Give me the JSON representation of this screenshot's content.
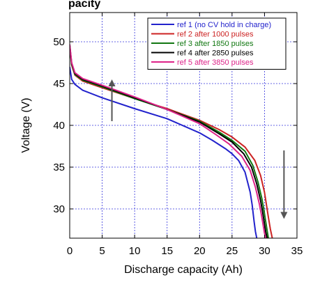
{
  "title_fragment": "pacity",
  "chart_data": {
    "type": "line",
    "title": "",
    "xlabel": "Discharge capacity (Ah)",
    "ylabel": "Voltage (V)",
    "xlim": [
      0,
      35
    ],
    "ylim": [
      26.5,
      53.5
    ],
    "xticks": [
      0,
      5,
      10,
      15,
      20,
      25,
      30,
      35
    ],
    "yticks": [
      30,
      35,
      40,
      45,
      50
    ],
    "grid": true,
    "legend_position": "top-right",
    "series": [
      {
        "name": "ref 1 (no CV hold in charge)",
        "color": "#2222cc",
        "x": [
          0,
          0.3,
          0.8,
          2,
          5,
          10,
          15,
          20,
          22,
          24,
          25,
          26,
          27,
          27.8,
          28.1,
          28.4,
          28.6,
          28.8
        ],
        "y": [
          47.0,
          45.5,
          44.9,
          44.2,
          43.3,
          42.0,
          40.8,
          39.1,
          38.2,
          37.2,
          36.6,
          35.8,
          34.4,
          32.0,
          30.5,
          28.5,
          27.3,
          26.5
        ]
      },
      {
        "name": "ref 2 after 1000 pulses",
        "color": "#cc2222",
        "x": [
          0,
          0.3,
          0.8,
          2,
          5,
          10,
          15,
          20,
          23,
          25,
          27,
          28.5,
          29.4,
          30.0,
          30.3,
          30.6,
          30.9,
          31.2
        ],
        "y": [
          49.5,
          47.2,
          46.0,
          45.3,
          44.5,
          43.2,
          42.0,
          40.6,
          39.5,
          38.6,
          37.4,
          35.8,
          34.0,
          32.0,
          30.5,
          29.0,
          27.6,
          26.5
        ]
      },
      {
        "name": "ref 3 after 1850 pulses",
        "color": "#117711",
        "x": [
          0,
          0.3,
          0.8,
          2,
          5,
          10,
          15,
          20,
          23,
          25,
          27,
          28.2,
          29.0,
          29.6,
          29.9,
          30.2,
          30.4,
          30.6
        ],
        "y": [
          49.5,
          47.3,
          46.1,
          45.4,
          44.6,
          43.2,
          41.9,
          40.5,
          39.2,
          38.2,
          36.9,
          35.2,
          33.2,
          31.2,
          29.9,
          28.4,
          27.4,
          26.5
        ]
      },
      {
        "name": "ref 4 after 2850 pulses",
        "color": "#000000",
        "x": [
          0,
          0.3,
          0.8,
          2,
          5,
          10,
          15,
          20,
          23,
          25,
          26.8,
          28.0,
          28.8,
          29.4,
          29.7,
          30.0,
          30.2,
          30.4
        ],
        "y": [
          49.6,
          47.4,
          46.2,
          45.5,
          44.7,
          43.3,
          41.9,
          40.4,
          39.0,
          38.0,
          36.6,
          35.0,
          33.0,
          31.0,
          29.7,
          28.2,
          27.2,
          26.5
        ]
      },
      {
        "name": "ref 5 after 3850 pulses",
        "color": "#dd2288",
        "x": [
          0,
          0.3,
          0.8,
          2,
          5,
          10,
          15,
          20,
          22.5,
          24.5,
          26.5,
          27.8,
          28.6,
          29.2,
          29.5,
          29.8,
          30.0,
          30.2
        ],
        "y": [
          49.7,
          47.5,
          46.3,
          45.6,
          44.8,
          43.4,
          41.9,
          40.2,
          38.9,
          37.8,
          36.3,
          34.6,
          32.6,
          30.6,
          29.4,
          28.0,
          27.1,
          26.5
        ]
      }
    ],
    "annotations": [
      {
        "type": "arrow",
        "direction": "up",
        "x": 6.5,
        "y_from": 40.5,
        "y_to": 45.5,
        "color": "#555555"
      },
      {
        "type": "arrow",
        "direction": "down",
        "x": 33.0,
        "y_from": 37.0,
        "y_to": 28.8,
        "color": "#555555"
      }
    ]
  }
}
